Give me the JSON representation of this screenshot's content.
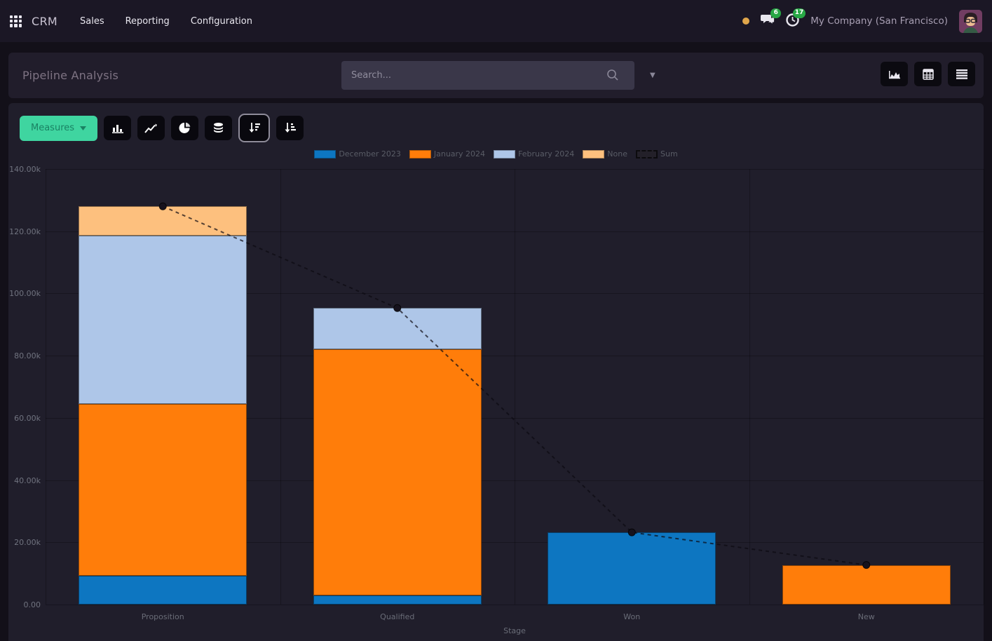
{
  "navbar": {
    "app_name": "CRM",
    "menus": [
      "Sales",
      "Reporting",
      "Configuration"
    ],
    "messages_badge": "6",
    "activities_badge": "17",
    "company": "My Company (San Francisco)"
  },
  "control_panel": {
    "title": "Pipeline Analysis",
    "search_placeholder": "Search..."
  },
  "toolbar": {
    "measures_label": "Measures"
  },
  "colors": {
    "accent_green": "#3fd5a0",
    "badge_green": "#28a745",
    "status_dot_orange": "#e0a64b",
    "panel_bg": "#201e2b",
    "navbar_bg": "#1b1725"
  },
  "chart_data": {
    "type": "bar",
    "stacked": true,
    "title": "",
    "xlabel": "Stage",
    "ylabel": "",
    "ylim": [
      0,
      140000
    ],
    "ytick_step": 20000,
    "grid": true,
    "legend_position": "top",
    "categories": [
      "Proposition",
      "Qualified",
      "Won",
      "New"
    ],
    "series": [
      {
        "name": "December 2023",
        "color": "#0d76c1",
        "values": [
          9300,
          2900,
          23200,
          0
        ]
      },
      {
        "name": "January 2024",
        "color": "#ff7d0a",
        "values": [
          55100,
          79100,
          0,
          12700
        ]
      },
      {
        "name": "February 2024",
        "color": "#aec6e8",
        "values": [
          54100,
          13300,
          0,
          0
        ]
      },
      {
        "name": "None",
        "color": "#fdc07e",
        "values": [
          9500,
          0,
          0,
          0
        ]
      }
    ],
    "line_series": {
      "name": "Sum",
      "dashed": true,
      "color": "#16121d",
      "values": [
        128000,
        95300,
        23200,
        12700
      ]
    }
  }
}
